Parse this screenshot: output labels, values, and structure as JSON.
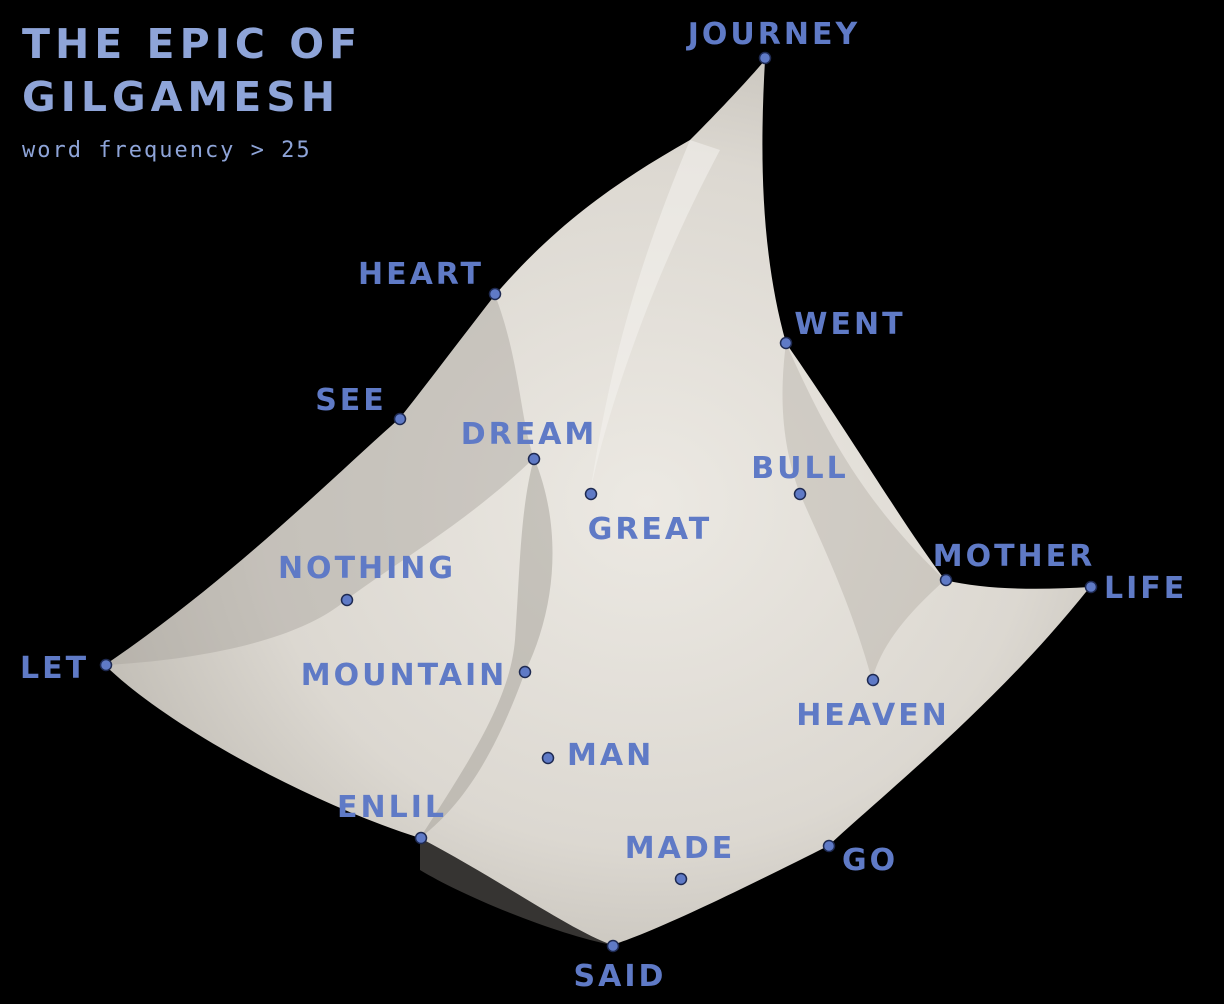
{
  "title_line1": "THE EPIC OF",
  "title_line2": "GILGAMESH",
  "subtitle": "word frequency > 25",
  "colors": {
    "background": "#000000",
    "label": "#5f7ac6",
    "title": "#8ea4d8",
    "dot_fill": "#5f7ac6",
    "dot_stroke": "#1e2a52",
    "surface": "#ddd9d2"
  },
  "words": [
    "JOURNEY",
    "HEART",
    "WENT",
    "SEE",
    "DREAM",
    "BULL",
    "GREAT",
    "NOTHING",
    "MOTHER",
    "LIFE",
    "LET",
    "MOUNTAIN",
    "HEAVEN",
    "MAN",
    "ENLIL",
    "MADE",
    "GO",
    "SAID"
  ]
}
